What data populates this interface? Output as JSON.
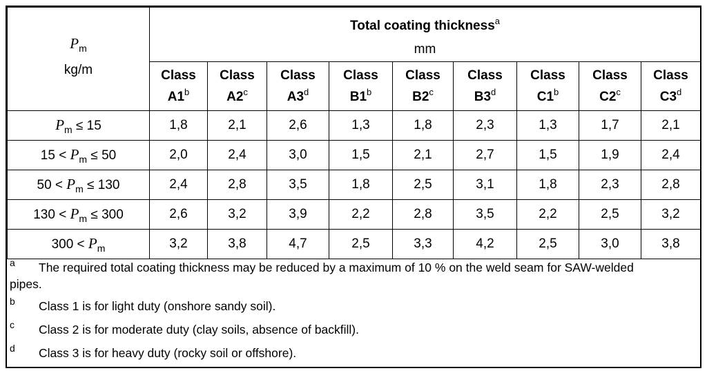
{
  "header": {
    "pm_symbol": "P",
    "pm_sub": "m",
    "pm_unit": "kg/m",
    "title": "Total coating thickness",
    "title_note": "a",
    "unit": "mm"
  },
  "classes": [
    {
      "word": "Class",
      "code": "A1",
      "note": "b"
    },
    {
      "word": "Class",
      "code": "A2",
      "note": "c"
    },
    {
      "word": "Class",
      "code": "A3",
      "note": "d"
    },
    {
      "word": "Class",
      "code": "B1",
      "note": "b"
    },
    {
      "word": "Class",
      "code": "B2",
      "note": "c"
    },
    {
      "word": "Class",
      "code": "B3",
      "note": "d"
    },
    {
      "word": "Class",
      "code": "C1",
      "note": "b"
    },
    {
      "word": "Class",
      "code": "C2",
      "note": "c"
    },
    {
      "word": "Class",
      "code": "C3",
      "note": "d"
    }
  ],
  "rows": [
    {
      "pre": "",
      "sym": "P",
      "sub": "m",
      "post": " ≤ 15",
      "values": [
        "1,8",
        "2,1",
        "2,6",
        "1,3",
        "1,8",
        "2,3",
        "1,3",
        "1,7",
        "2,1"
      ]
    },
    {
      "pre": "15 < ",
      "sym": "P",
      "sub": "m",
      "post": " ≤ 50",
      "values": [
        "2,0",
        "2,4",
        "3,0",
        "1,5",
        "2,1",
        "2,7",
        "1,5",
        "1,9",
        "2,4"
      ]
    },
    {
      "pre": "50 < ",
      "sym": "P",
      "sub": "m",
      "post": " ≤ 130",
      "values": [
        "2,4",
        "2,8",
        "3,5",
        "1,8",
        "2,5",
        "3,1",
        "1,8",
        "2,3",
        "2,8"
      ]
    },
    {
      "pre": "130 < ",
      "sym": "P",
      "sub": "m",
      "post": " ≤ 300",
      "values": [
        "2,6",
        "3,2",
        "3,9",
        "2,2",
        "2,8",
        "3,5",
        "2,2",
        "2,5",
        "3,2"
      ]
    },
    {
      "pre": "300 < ",
      "sym": "P",
      "sub": "m",
      "post": "",
      "values": [
        "3,2",
        "3,8",
        "4,7",
        "2,5",
        "3,3",
        "4,2",
        "2,5",
        "3,0",
        "3,8"
      ]
    }
  ],
  "notes": [
    {
      "mark": "a",
      "text": "The required total coating thickness may be reduced by a maximum of 10 % on the weld seam for SAW-welded",
      "cont": "pipes."
    },
    {
      "mark": "b",
      "text": "Class 1 is for light duty (onshore sandy soil)."
    },
    {
      "mark": "c",
      "text": "Class 2 is for moderate duty (clay soils, absence of backfill)."
    },
    {
      "mark": "d",
      "text": "Class 3 is for heavy duty (rocky soil or offshore)."
    }
  ]
}
